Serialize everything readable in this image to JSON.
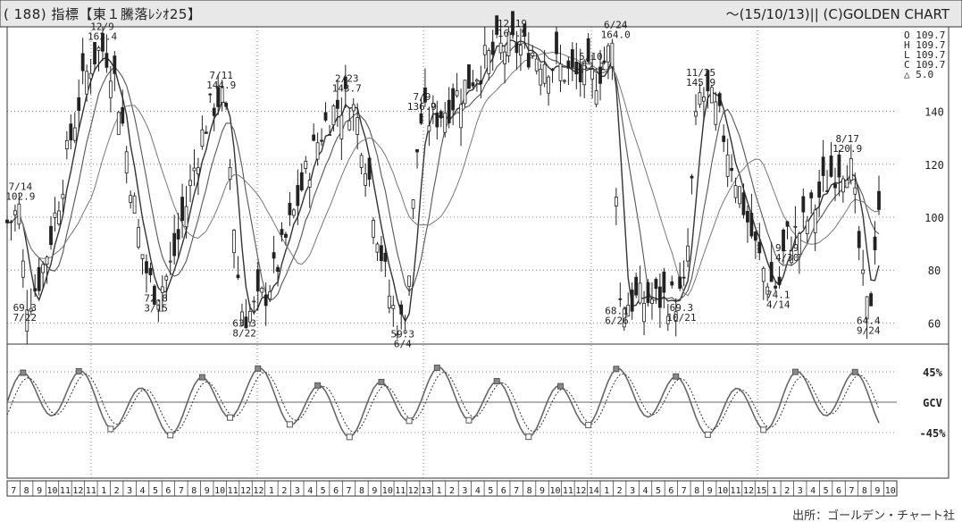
{
  "header": {
    "title": "( 188) 指標【東１騰落ﾚｼｵ25】",
    "range": "～(15/10/13)|| (C)GOLDEN CHART"
  },
  "ohlc_box": {
    "lines": [
      "O 109.7",
      "H 109.7",
      "L 109.7",
      "C 109.7"
    ],
    "delta": "△  5.0"
  },
  "source": "出所：ゴールデン・チャート社",
  "chart_data": [
    {
      "type": "candlestick",
      "title": "指標【東１騰落ﾚｼｵ25】",
      "ylim": [
        52,
        172
      ],
      "yticks": [
        60,
        80,
        100,
        120,
        140
      ],
      "grid": true,
      "period": "2011-07 to 2015-10",
      "annotations": [
        {
          "date": "2011-07-22",
          "value": 69.3,
          "label1": "69.3",
          "label2": "7/22"
        },
        {
          "date": "2011-07-14",
          "value": 102.9,
          "label1": "7/14",
          "label2": "102.9"
        },
        {
          "date": "2011-12-09",
          "value": 163.4,
          "label1": "12/9",
          "label2": "163.4"
        },
        {
          "date": "2012-03-15",
          "value": 72.8,
          "label1": "72.8",
          "label2": "3/15"
        },
        {
          "date": "2012-07-11",
          "value": 144.9,
          "label1": "7/11",
          "label2": "144.9"
        },
        {
          "date": "2012-08-22",
          "value": 63.3,
          "label1": "63.3",
          "label2": "8/22"
        },
        {
          "date": "2013-02-23",
          "value": 143.7,
          "label1": "2/23",
          "label2": "143.7"
        },
        {
          "date": "2013-06-04",
          "value": 59.3,
          "label1": "59.3",
          "label2": "6/4"
        },
        {
          "date": "2013-07-09",
          "value": 136.9,
          "label1": "7/9",
          "label2": "136.9"
        },
        {
          "date": "2013-12-19",
          "value": 164.5,
          "label1": "12/19",
          "label2": "164.5"
        },
        {
          "date": "2014-05-10",
          "value": 152.1,
          "label1": "5/10",
          "label2": "152.1"
        },
        {
          "date": "2014-06-26",
          "value": 68.1,
          "label1": "68.1",
          "label2": "6/26"
        },
        {
          "date": "2015-04-14",
          "value": 74.1,
          "label1": "74.1",
          "label2": "4/14"
        },
        {
          "date": "2014-06-24",
          "value": 164.0,
          "label1": "6/24",
          "label2": "164.0"
        },
        {
          "date": "2014-10-21",
          "value": 69.3,
          "label1": "69.3",
          "label2": "10/21"
        },
        {
          "date": "2014-11-25",
          "value": 145.9,
          "label1": "11/25",
          "label2": "145.9"
        },
        {
          "date": "2015-04-30",
          "value": 91.9,
          "label1": "91.9",
          "label2": "4/30"
        },
        {
          "date": "2015-08-17",
          "value": 120.9,
          "label1": "8/17",
          "label2": "120.9"
        },
        {
          "date": "2015-09-24",
          "value": 64.4,
          "label1": "64.4",
          "label2": "9/24"
        }
      ]
    },
    {
      "type": "line",
      "title": "GCV",
      "yticks": [
        "45%",
        "GCV",
        "-45%"
      ],
      "ylim": [
        -70,
        70
      ]
    }
  ],
  "x_axis": {
    "months": [
      "7",
      "8",
      "9",
      "10",
      "11",
      "12",
      "11",
      "1",
      "2",
      "3",
      "4",
      "5",
      "6",
      "7",
      "8",
      "9",
      "10",
      "11",
      "12",
      "12",
      "1",
      "2",
      "3",
      "4",
      "5",
      "6",
      "7",
      "8",
      "9",
      "10",
      "11",
      "12",
      "13",
      "1",
      "2",
      "3",
      "4",
      "5",
      "6",
      "7",
      "8",
      "9",
      "10",
      "11",
      "12",
      "14",
      "1",
      "2",
      "3",
      "4",
      "5",
      "6",
      "7",
      "8",
      "9",
      "10",
      "11",
      "12",
      "15",
      "1",
      "2",
      "3",
      "4",
      "5",
      "6",
      "7",
      "8",
      "9",
      "10"
    ]
  }
}
